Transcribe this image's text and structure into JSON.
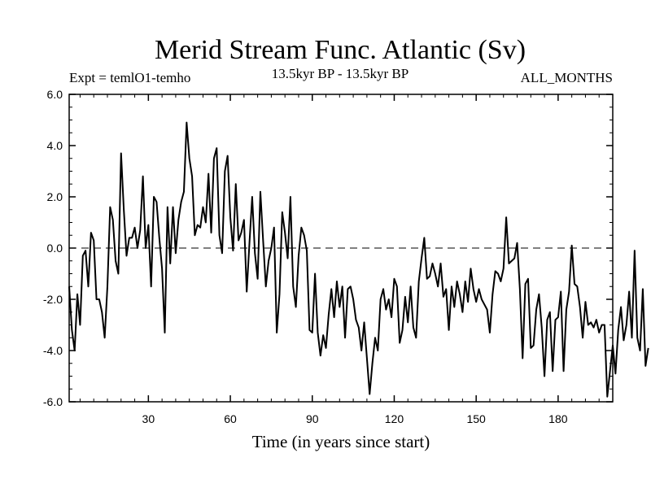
{
  "chart_data": {
    "type": "line",
    "title": "Merid Stream Func. Atlantic (Sv)",
    "subtitle_left": "Expt = temlO1-temho",
    "subtitle_center": "13.5kyr BP - 13.5kyr BP",
    "subtitle_right": "ALL_MONTHS",
    "xlabel": "Time (in years since start)",
    "ylabel": "",
    "xlim": [
      1,
      200
    ],
    "ylim": [
      -6.0,
      6.0
    ],
    "x_ticks": [
      30,
      60,
      90,
      120,
      150,
      180
    ],
    "x_tick_labels": [
      "30",
      "60",
      "90",
      "120",
      "150",
      "180"
    ],
    "y_ticks": [
      -6,
      -4,
      -2,
      0,
      2,
      4,
      6
    ],
    "y_tick_labels": [
      "-6.0",
      "-4.0",
      "-2.0",
      "0.0",
      "2.0",
      "4.0",
      "6.0"
    ],
    "reference_line": 0.0,
    "series": [
      {
        "name": "Merid Stream Func. Atlantic",
        "x_start": 1,
        "x_step": 1,
        "values": [
          -1.5,
          -3.2,
          -4.0,
          -1.8,
          -3.0,
          -0.3,
          -0.1,
          -1.5,
          0.6,
          0.3,
          -2.0,
          -2.0,
          -2.5,
          -3.5,
          -1.5,
          1.6,
          1.1,
          -0.5,
          -1.0,
          3.7,
          1.5,
          -0.3,
          0.4,
          0.4,
          0.8,
          0.0,
          0.7,
          2.8,
          0.0,
          0.9,
          -1.5,
          2.0,
          1.8,
          0.4,
          -0.8,
          -3.3,
          1.6,
          -0.6,
          1.6,
          -0.2,
          1.1,
          1.8,
          2.2,
          4.9,
          3.5,
          2.8,
          0.5,
          0.9,
          0.8,
          1.6,
          1.0,
          2.9,
          0.6,
          3.5,
          3.9,
          0.5,
          -0.2,
          3.0,
          3.6,
          1.2,
          -0.1,
          2.5,
          0.3,
          0.6,
          1.1,
          -1.7,
          0.2,
          2.0,
          -0.2,
          -1.2,
          2.2,
          0.3,
          -1.5,
          -0.5,
          0.0,
          0.8,
          -3.3,
          -1.8,
          1.4,
          0.6,
          -0.4,
          2.0,
          -1.5,
          -2.3,
          -0.3,
          0.8,
          0.5,
          -0.1,
          -3.2,
          -3.3,
          -1.0,
          -3.3,
          -4.2,
          -3.4,
          -3.9,
          -2.6,
          -1.6,
          -2.7,
          -1.3,
          -2.3,
          -1.5,
          -3.5,
          -1.6,
          -1.5,
          -2.0,
          -2.8,
          -3.1,
          -4.0,
          -2.9,
          -4.3,
          -5.7,
          -4.5,
          -3.5,
          -4.0,
          -2.0,
          -1.6,
          -2.4,
          -2.0,
          -2.7,
          -1.2,
          -1.5,
          -3.7,
          -3.2,
          -1.9,
          -2.9,
          -1.5,
          -3.1,
          -3.5,
          -1.3,
          -0.4,
          0.4,
          -1.2,
          -1.1,
          -0.6,
          -1.0,
          -1.5,
          -0.6,
          -1.9,
          -1.6,
          -3.2,
          -1.5,
          -2.3,
          -1.3,
          -1.8,
          -2.5,
          -1.3,
          -2.1,
          -0.8,
          -1.6,
          -2.1,
          -1.6,
          -2.0,
          -2.2,
          -2.4,
          -3.3,
          -1.8,
          -0.9,
          -1.0,
          -1.3,
          -0.8,
          1.2,
          -0.6,
          -0.5,
          -0.4,
          0.2,
          -1.6,
          -4.3,
          -1.4,
          -1.2,
          -3.9,
          -3.8,
          -2.4,
          -1.8,
          -3.1,
          -5.0,
          -2.8,
          -2.5,
          -4.8,
          -2.8,
          -2.7,
          -1.7,
          -4.8,
          -2.4,
          -1.7,
          0.1,
          -1.4,
          -1.5,
          -2.3,
          -3.5,
          -2.1,
          -3.0,
          -2.9,
          -3.1,
          -2.8,
          -3.3,
          -3.0,
          -3.0,
          -5.8,
          -4.8,
          -3.8,
          -4.9,
          -3.2,
          -2.3,
          -3.6,
          -3.0,
          -1.7,
          -3.5,
          -0.1,
          -3.5,
          -4.0,
          -1.6,
          -4.6,
          -3.9
        ]
      }
    ]
  }
}
